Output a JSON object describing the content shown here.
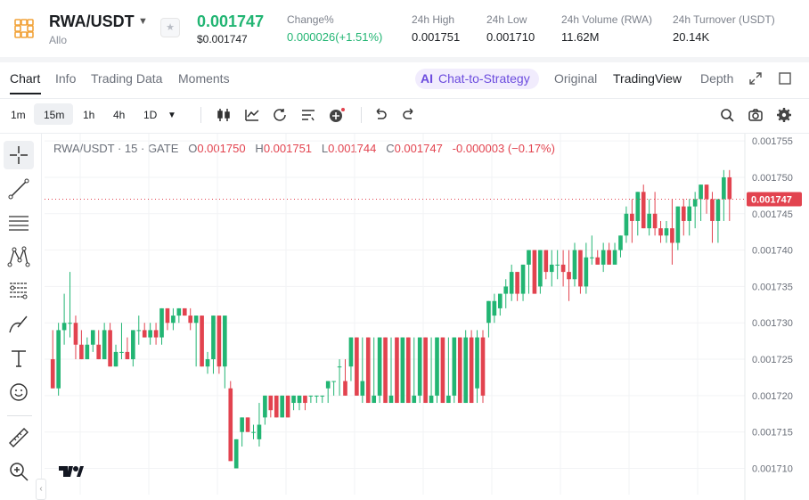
{
  "header": {
    "pair": "RWA/USDT",
    "name": "Allo",
    "price": "0.001747",
    "price_usd": "$0.001747",
    "stats": [
      {
        "label": "Change%",
        "value": "0.000026(+1.51%)",
        "color": "#22b573"
      },
      {
        "label": "24h High",
        "value": "0.001751"
      },
      {
        "label": "24h Low",
        "value": "0.001710"
      },
      {
        "label": "24h Volume (RWA)",
        "value": "11.62M"
      },
      {
        "label": "24h Turnover (USDT)",
        "value": "20.14K"
      }
    ]
  },
  "tabs": [
    "Chart",
    "Info",
    "Trading Data",
    "Moments"
  ],
  "strategy_chip": {
    "icon": "AI",
    "label": "Chat-to-Strategy"
  },
  "view_tabs": [
    "Original",
    "TradingView",
    "Depth"
  ],
  "timeframes": [
    "1m",
    "15m",
    "1h",
    "4h",
    "1D"
  ],
  "active_timeframe": "15m",
  "legend": {
    "symbol": "RWA/USDT · 15 · GATE",
    "o_label": "O",
    "o": "0.001750",
    "h_label": "H",
    "h": "0.001751",
    "l_label": "L",
    "l": "0.001744",
    "c_label": "C",
    "c": "0.001747",
    "chg": "-0.000003 (−0.17%)"
  },
  "colors": {
    "up": "#22b573",
    "down": "#e2434f",
    "accent": "#6b4bde"
  },
  "chart_data": {
    "type": "candlestick",
    "ylim": [
      0.001707,
      0.001756
    ],
    "y_ticks": [
      "0.001755",
      "0.001750",
      "0.001745",
      "0.001740",
      "0.001735",
      "0.001730",
      "0.001725",
      "0.001720",
      "0.001715",
      "0.001710"
    ],
    "last_price_label": "0.001747",
    "last_price": 0.001747,
    "candles": [
      {
        "o": 0.001725,
        "h": 0.001729,
        "l": 0.001721,
        "c": 0.001721
      },
      {
        "o": 0.001721,
        "h": 0.00173,
        "l": 0.00172,
        "c": 0.001729
      },
      {
        "o": 0.001729,
        "h": 0.001734,
        "l": 0.001727,
        "c": 0.00173
      },
      {
        "o": 0.00173,
        "h": 0.001737,
        "l": 0.001728,
        "c": 0.00173
      },
      {
        "o": 0.00173,
        "h": 0.001731,
        "l": 0.001725,
        "c": 0.001727
      },
      {
        "o": 0.001727,
        "h": 0.001729,
        "l": 0.001725,
        "c": 0.001725
      },
      {
        "o": 0.001725,
        "h": 0.001728,
        "l": 0.001725,
        "c": 0.001727
      },
      {
        "o": 0.001727,
        "h": 0.001729,
        "l": 0.001726,
        "c": 0.001729
      },
      {
        "o": 0.001727,
        "h": 0.001729,
        "l": 0.001725,
        "c": 0.001725
      },
      {
        "o": 0.001725,
        "h": 0.00173,
        "l": 0.001725,
        "c": 0.001729
      },
      {
        "o": 0.001729,
        "h": 0.00173,
        "l": 0.001724,
        "c": 0.001724
      },
      {
        "o": 0.001724,
        "h": 0.001727,
        "l": 0.001724,
        "c": 0.001726
      },
      {
        "o": 0.001726,
        "h": 0.00173,
        "l": 0.001725,
        "c": 0.001726
      },
      {
        "o": 0.001726,
        "h": 0.001728,
        "l": 0.001725,
        "c": 0.001725
      },
      {
        "o": 0.001725,
        "h": 0.001729,
        "l": 0.001724,
        "c": 0.001729
      },
      {
        "o": 0.001729,
        "h": 0.001731,
        "l": 0.001727,
        "c": 0.001729
      },
      {
        "o": 0.001729,
        "h": 0.00173,
        "l": 0.001728,
        "c": 0.001728
      },
      {
        "o": 0.001728,
        "h": 0.00173,
        "l": 0.001727,
        "c": 0.001729
      },
      {
        "o": 0.001729,
        "h": 0.00173,
        "l": 0.001727,
        "c": 0.001728
      },
      {
        "o": 0.001728,
        "h": 0.001732,
        "l": 0.001727,
        "c": 0.001732
      },
      {
        "o": 0.001732,
        "h": 0.001732,
        "l": 0.001729,
        "c": 0.00173
      },
      {
        "o": 0.00173,
        "h": 0.001732,
        "l": 0.001729,
        "c": 0.001731
      },
      {
        "o": 0.001731,
        "h": 0.001732,
        "l": 0.00173,
        "c": 0.001732
      },
      {
        "o": 0.001732,
        "h": 0.001732,
        "l": 0.001731,
        "c": 0.001731
      },
      {
        "o": 0.001731,
        "h": 0.001732,
        "l": 0.001729,
        "c": 0.00173
      },
      {
        "o": 0.00173,
        "h": 0.001731,
        "l": 0.001724,
        "c": 0.001731
      },
      {
        "o": 0.001731,
        "h": 0.001731,
        "l": 0.001724,
        "c": 0.001724
      },
      {
        "o": 0.001724,
        "h": 0.001726,
        "l": 0.001723,
        "c": 0.001725
      },
      {
        "o": 0.001725,
        "h": 0.001731,
        "l": 0.001723,
        "c": 0.001731
      },
      {
        "o": 0.001731,
        "h": 0.001731,
        "l": 0.001723,
        "c": 0.001724
      },
      {
        "o": 0.001724,
        "h": 0.001731,
        "l": 0.001721,
        "c": 0.001731
      },
      {
        "o": 0.001721,
        "h": 0.001722,
        "l": 0.001711,
        "c": 0.001711
      },
      {
        "o": 0.00171,
        "h": 0.001714,
        "l": 0.00171,
        "c": 0.001714
      },
      {
        "o": 0.001715,
        "h": 0.001717,
        "l": 0.001713,
        "c": 0.001717
      },
      {
        "o": 0.001717,
        "h": 0.001717,
        "l": 0.001715,
        "c": 0.001715
      },
      {
        "o": 0.001715,
        "h": 0.001716,
        "l": 0.001714,
        "c": 0.001715
      },
      {
        "o": 0.001714,
        "h": 0.001719,
        "l": 0.001713,
        "c": 0.001716
      },
      {
        "o": 0.001717,
        "h": 0.00172,
        "l": 0.001716,
        "c": 0.00172
      },
      {
        "o": 0.00172,
        "h": 0.00172,
        "l": 0.001717,
        "c": 0.001718
      },
      {
        "o": 0.00172,
        "h": 0.00172,
        "l": 0.001717,
        "c": 0.001717
      },
      {
        "o": 0.001717,
        "h": 0.00172,
        "l": 0.001717,
        "c": 0.00172
      },
      {
        "o": 0.00172,
        "h": 0.00172,
        "l": 0.001717,
        "c": 0.001717
      },
      {
        "o": 0.001719,
        "h": 0.00172,
        "l": 0.001718,
        "c": 0.00172
      },
      {
        "o": 0.001719,
        "h": 0.00172,
        "l": 0.001718,
        "c": 0.00172
      },
      {
        "o": 0.00172,
        "h": 0.00172,
        "l": 0.001718,
        "c": 0.001719
      },
      {
        "o": 0.00172,
        "h": 0.00172,
        "l": 0.001719,
        "c": 0.00172
      },
      {
        "o": 0.00172,
        "h": 0.00172,
        "l": 0.001719,
        "c": 0.00172
      },
      {
        "o": 0.00172,
        "h": 0.00172,
        "l": 0.001719,
        "c": 0.00172
      },
      {
        "o": 0.001721,
        "h": 0.001722,
        "l": 0.001719,
        "c": 0.001722
      },
      {
        "o": 0.001722,
        "h": 0.001722,
        "l": 0.00172,
        "c": 0.001722
      },
      {
        "o": 0.001724,
        "h": 0.001725,
        "l": 0.00172,
        "c": 0.001724
      },
      {
        "o": 0.001722,
        "h": 0.001725,
        "l": 0.00172,
        "c": 0.00172
      },
      {
        "o": 0.001724,
        "h": 0.001728,
        "l": 0.001722,
        "c": 0.001728
      },
      {
        "o": 0.001728,
        "h": 0.001728,
        "l": 0.00172,
        "c": 0.00172
      },
      {
        "o": 0.00172,
        "h": 0.001728,
        "l": 0.001719,
        "c": 0.001722
      },
      {
        "o": 0.001728,
        "h": 0.001728,
        "l": 0.001719,
        "c": 0.001719
      },
      {
        "o": 0.001719,
        "h": 0.001728,
        "l": 0.001719,
        "c": 0.00172
      },
      {
        "o": 0.00172,
        "h": 0.001728,
        "l": 0.001719,
        "c": 0.001728
      },
      {
        "o": 0.001728,
        "h": 0.001728,
        "l": 0.001719,
        "c": 0.001719
      },
      {
        "o": 0.001719,
        "h": 0.001728,
        "l": 0.001719,
        "c": 0.00172
      },
      {
        "o": 0.001728,
        "h": 0.001728,
        "l": 0.001719,
        "c": 0.001719
      },
      {
        "o": 0.001719,
        "h": 0.001728,
        "l": 0.001719,
        "c": 0.001728
      },
      {
        "o": 0.001728,
        "h": 0.001728,
        "l": 0.001719,
        "c": 0.001719
      },
      {
        "o": 0.001719,
        "h": 0.001728,
        "l": 0.001719,
        "c": 0.00172
      },
      {
        "o": 0.00172,
        "h": 0.001728,
        "l": 0.001719,
        "c": 0.001728
      },
      {
        "o": 0.001728,
        "h": 0.001728,
        "l": 0.001719,
        "c": 0.001719
      },
      {
        "o": 0.001719,
        "h": 0.001728,
        "l": 0.001719,
        "c": 0.00172
      },
      {
        "o": 0.00172,
        "h": 0.001728,
        "l": 0.001719,
        "c": 0.001728
      },
      {
        "o": 0.001728,
        "h": 0.001728,
        "l": 0.001719,
        "c": 0.001719
      },
      {
        "o": 0.001719,
        "h": 0.001728,
        "l": 0.001719,
        "c": 0.00172
      },
      {
        "o": 0.00172,
        "h": 0.001728,
        "l": 0.001719,
        "c": 0.001728
      },
      {
        "o": 0.001728,
        "h": 0.001728,
        "l": 0.001719,
        "c": 0.001719
      },
      {
        "o": 0.001719,
        "h": 0.001729,
        "l": 0.001719,
        "c": 0.001728
      },
      {
        "o": 0.001728,
        "h": 0.001729,
        "l": 0.001719,
        "c": 0.001719
      },
      {
        "o": 0.001721,
        "h": 0.001729,
        "l": 0.001719,
        "c": 0.001728
      },
      {
        "o": 0.001728,
        "h": 0.001729,
        "l": 0.001719,
        "c": 0.00172
      },
      {
        "o": 0.00173,
        "h": 0.001733,
        "l": 0.001728,
        "c": 0.001733
      },
      {
        "o": 0.001731,
        "h": 0.001734,
        "l": 0.00173,
        "c": 0.001733
      },
      {
        "o": 0.001732,
        "h": 0.001734,
        "l": 0.001731,
        "c": 0.001734
      },
      {
        "o": 0.001734,
        "h": 0.001736,
        "l": 0.001732,
        "c": 0.001735
      },
      {
        "o": 0.001734,
        "h": 0.001738,
        "l": 0.001733,
        "c": 0.001737
      },
      {
        "o": 0.001737,
        "h": 0.001737,
        "l": 0.001733,
        "c": 0.001734
      },
      {
        "o": 0.001734,
        "h": 0.001738,
        "l": 0.001733,
        "c": 0.001738
      },
      {
        "o": 0.001738,
        "h": 0.00174,
        "l": 0.001734,
        "c": 0.00174
      },
      {
        "o": 0.00174,
        "h": 0.00174,
        "l": 0.001734,
        "c": 0.001734
      },
      {
        "o": 0.001735,
        "h": 0.00174,
        "l": 0.001734,
        "c": 0.00174
      },
      {
        "o": 0.00174,
        "h": 0.00174,
        "l": 0.001736,
        "c": 0.001737
      },
      {
        "o": 0.001737,
        "h": 0.00174,
        "l": 0.001735,
        "c": 0.001738
      },
      {
        "o": 0.001738,
        "h": 0.00174,
        "l": 0.001736,
        "c": 0.001738
      },
      {
        "o": 0.001738,
        "h": 0.00174,
        "l": 0.001735,
        "c": 0.001737
      },
      {
        "o": 0.001737,
        "h": 0.00174,
        "l": 0.001733,
        "c": 0.001736
      },
      {
        "o": 0.001736,
        "h": 0.001741,
        "l": 0.001735,
        "c": 0.00174
      },
      {
        "o": 0.00174,
        "h": 0.00174,
        "l": 0.001734,
        "c": 0.001735
      },
      {
        "o": 0.001735,
        "h": 0.001741,
        "l": 0.001734,
        "c": 0.001739
      },
      {
        "o": 0.001739,
        "h": 0.001742,
        "l": 0.001738,
        "c": 0.001739
      },
      {
        "o": 0.001739,
        "h": 0.00174,
        "l": 0.001738,
        "c": 0.001738
      },
      {
        "o": 0.001738,
        "h": 0.001741,
        "l": 0.001737,
        "c": 0.00174
      },
      {
        "o": 0.00174,
        "h": 0.001741,
        "l": 0.001738,
        "c": 0.001738
      },
      {
        "o": 0.001738,
        "h": 0.001741,
        "l": 0.001738,
        "c": 0.00174
      },
      {
        "o": 0.00174,
        "h": 0.001742,
        "l": 0.001739,
        "c": 0.001742
      },
      {
        "o": 0.001742,
        "h": 0.001746,
        "l": 0.001741,
        "c": 0.001745
      },
      {
        "o": 0.001745,
        "h": 0.001747,
        "l": 0.001741,
        "c": 0.001744
      },
      {
        "o": 0.001744,
        "h": 0.001748,
        "l": 0.001742,
        "c": 0.001748
      },
      {
        "o": 0.001748,
        "h": 0.001749,
        "l": 0.001743,
        "c": 0.001743
      },
      {
        "o": 0.001743,
        "h": 0.001747,
        "l": 0.001742,
        "c": 0.001745
      },
      {
        "o": 0.001745,
        "h": 0.001748,
        "l": 0.001742,
        "c": 0.001743
      },
      {
        "o": 0.001743,
        "h": 0.001744,
        "l": 0.001741,
        "c": 0.001742
      },
      {
        "o": 0.001742,
        "h": 0.001744,
        "l": 0.001741,
        "c": 0.001743
      },
      {
        "o": 0.001743,
        "h": 0.001747,
        "l": 0.001738,
        "c": 0.001741
      },
      {
        "o": 0.001741,
        "h": 0.001746,
        "l": 0.00174,
        "c": 0.001746
      },
      {
        "o": 0.001746,
        "h": 0.001747,
        "l": 0.001742,
        "c": 0.001744
      },
      {
        "o": 0.001744,
        "h": 0.001747,
        "l": 0.001742,
        "c": 0.001746
      },
      {
        "o": 0.001746,
        "h": 0.001748,
        "l": 0.001743,
        "c": 0.001747
      },
      {
        "o": 0.001747,
        "h": 0.001749,
        "l": 0.001744,
        "c": 0.001749
      },
      {
        "o": 0.001749,
        "h": 0.001749,
        "l": 0.001745,
        "c": 0.001747
      },
      {
        "o": 0.001747,
        "h": 0.001748,
        "l": 0.001741,
        "c": 0.001744
      },
      {
        "o": 0.001744,
        "h": 0.001747,
        "l": 0.001741,
        "c": 0.001747
      },
      {
        "o": 0.001747,
        "h": 0.001751,
        "l": 0.001744,
        "c": 0.00175
      },
      {
        "o": 0.00175,
        "h": 0.001751,
        "l": 0.001744,
        "c": 0.001747
      }
    ]
  }
}
